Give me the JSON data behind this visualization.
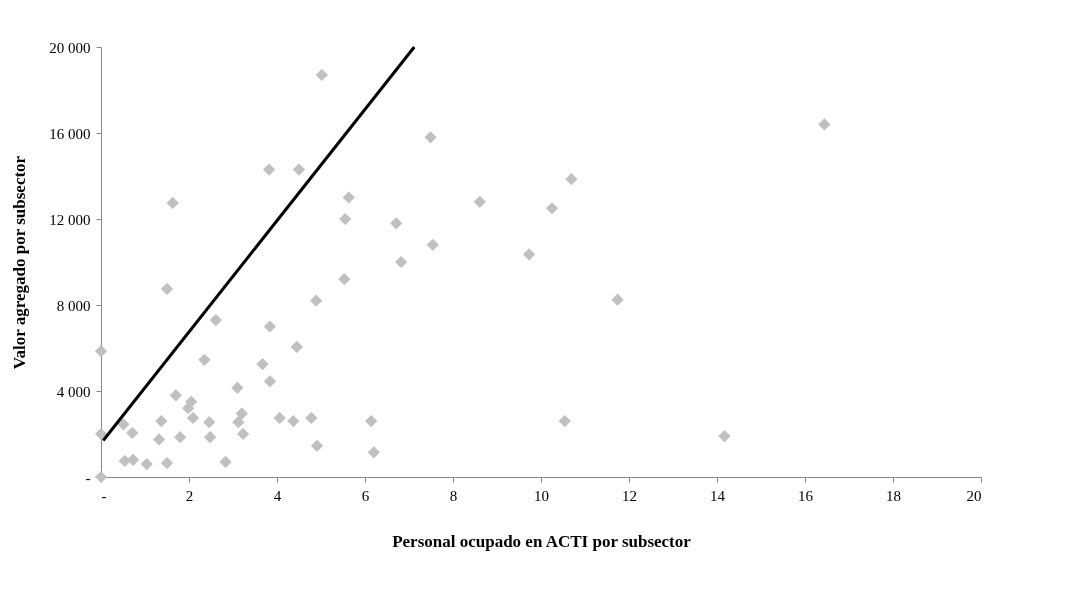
{
  "chart_data": {
    "type": "scatter",
    "xlabel": "Personal ocupado en ACTI por subsector",
    "ylabel": "Valor agregado por subsector",
    "xlim": [
      0,
      20
    ],
    "ylim": [
      0,
      20000
    ],
    "xticks": [
      {
        "value": 0,
        "label": "-"
      },
      2,
      4,
      6,
      8,
      10,
      12,
      14,
      16,
      18,
      20
    ],
    "yticks": [
      {
        "value": 0,
        "label": "-"
      },
      {
        "value": 4000,
        "label": "4 000"
      },
      {
        "value": 8000,
        "label": "8 000"
      },
      {
        "value": 12000,
        "label": "12 000"
      },
      {
        "value": 16000,
        "label": "16 000"
      },
      {
        "value": 20000,
        "label": "20 000"
      }
    ],
    "grid": false,
    "marker": "diamond",
    "series": [
      {
        "color": "#c0c0c0",
        "x": [
          5.02,
          3.82,
          4.5,
          1.63,
          5.63,
          5.55,
          6.71,
          1.5,
          5.53,
          4.89,
          2.61,
          3.84,
          0,
          4.45,
          2.35,
          3.67,
          3.84,
          3.1,
          1.7,
          2.05,
          1.98,
          2.09,
          3.2,
          3.12,
          4.06,
          4.37,
          4.78,
          6.14,
          1.37,
          0.51,
          2.46,
          0,
          0.71,
          3.23,
          1.32,
          1.8,
          2.48,
          4.91,
          6.2,
          0.54,
          0.73,
          1.04,
          1.5,
          2.83,
          0,
          7.49,
          10.69,
          8.61,
          10.25,
          7.54,
          6.82,
          9.73,
          11.74,
          10.54,
          16.44,
          14.17
        ],
        "values": [
          18700,
          14300,
          14300,
          12750,
          13000,
          12000,
          11800,
          8750,
          9200,
          8200,
          7300,
          7000,
          5850,
          6050,
          5450,
          5250,
          4450,
          4150,
          3800,
          3500,
          3200,
          2750,
          2950,
          2550,
          2750,
          2600,
          2750,
          2600,
          2600,
          2450,
          2550,
          2000,
          2050,
          2000,
          1750,
          1850,
          1850,
          1450,
          1150,
          750,
          800,
          600,
          650,
          700,
          0,
          15800,
          13850,
          12800,
          12500,
          10800,
          10000,
          10350,
          8250,
          2600,
          16400,
          1900
        ]
      },
      {
        "type": "line",
        "color": "#000000",
        "line_style": "solid",
        "marker": "none",
        "x": [
          0.05,
          7.12
        ],
        "values": [
          1700,
          20000
        ]
      }
    ]
  }
}
